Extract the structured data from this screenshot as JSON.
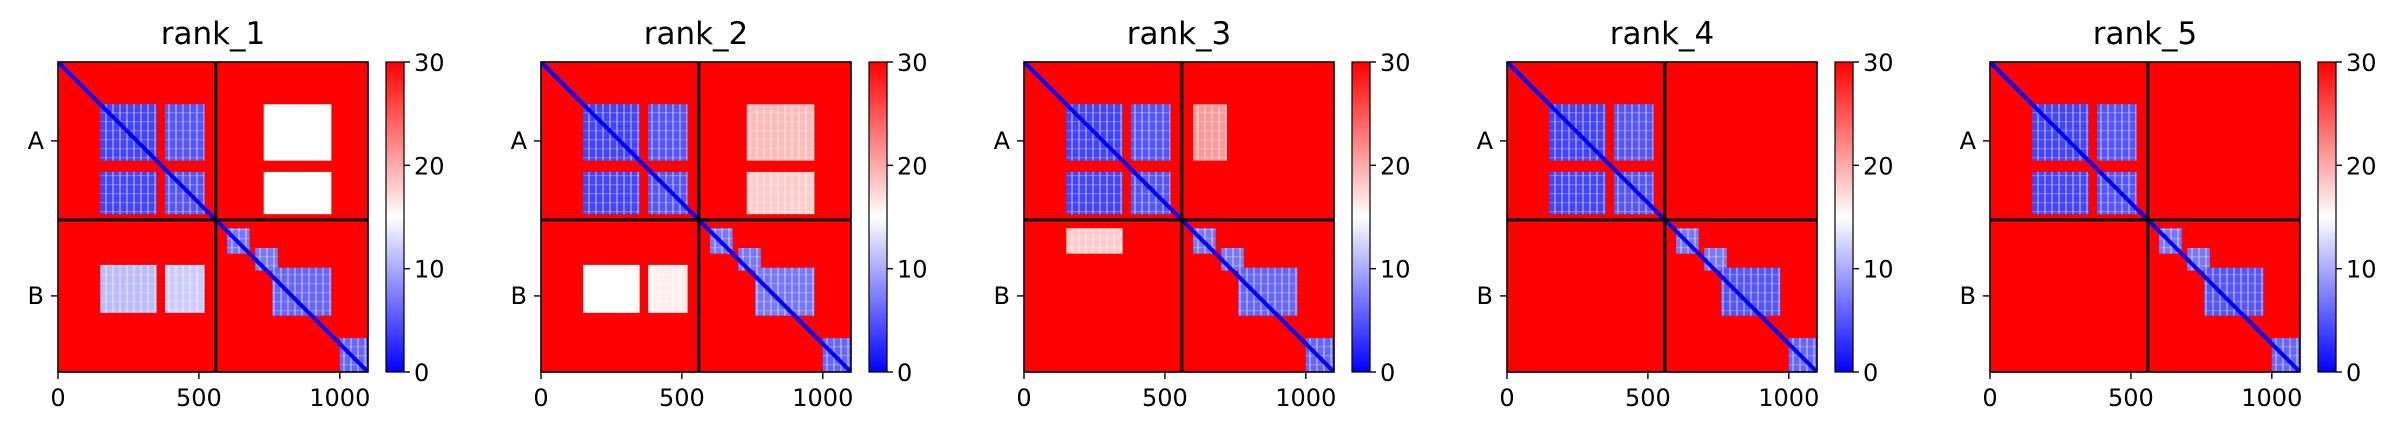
{
  "chart_data": {
    "type": "heatmap",
    "panels": [
      {
        "title": "rank_1",
        "x_ticks": [
          0,
          500,
          1000
        ],
        "y_tick_labels": [
          "A",
          "B"
        ],
        "xlim": [
          0,
          1100
        ],
        "ylim": [
          1100,
          0
        ],
        "chain_boundary": 560,
        "colorbar": {
          "min": 0,
          "max": 30,
          "ticks": [
            0,
            10,
            20,
            30
          ]
        },
        "low_error_blocks": [
          {
            "x": [
              150,
              350
            ],
            "y": [
              150,
              350
            ],
            "level": 4
          },
          {
            "x": [
              380,
              520
            ],
            "y": [
              150,
              350
            ],
            "level": 5
          },
          {
            "x": [
              150,
              350
            ],
            "y": [
              390,
              540
            ],
            "level": 4
          },
          {
            "x": [
              380,
              520
            ],
            "y": [
              390,
              540
            ],
            "level": 5
          },
          {
            "x": [
              730,
              970
            ],
            "y": [
              150,
              350
            ],
            "level": 15
          },
          {
            "x": [
              730,
              970
            ],
            "y": [
              390,
              540
            ],
            "level": 15
          },
          {
            "x": [
              150,
              350
            ],
            "y": [
              720,
              890
            ],
            "level": 11
          },
          {
            "x": [
              380,
              520
            ],
            "y": [
              720,
              890
            ],
            "level": 12
          },
          {
            "x": [
              600,
              680
            ],
            "y": [
              590,
              680
            ],
            "level": 7
          },
          {
            "x": [
              700,
              780
            ],
            "y": [
              660,
              740
            ],
            "level": 7
          },
          {
            "x": [
              760,
              970
            ],
            "y": [
              730,
              900
            ],
            "level": 6
          },
          {
            "x": [
              1000,
              1100
            ],
            "y": [
              980,
              1100
            ],
            "level": 6
          }
        ]
      },
      {
        "title": "rank_2",
        "x_ticks": [
          0,
          500,
          1000
        ],
        "y_tick_labels": [
          "A",
          "B"
        ],
        "xlim": [
          0,
          1100
        ],
        "ylim": [
          1100,
          0
        ],
        "chain_boundary": 560,
        "colorbar": {
          "min": 0,
          "max": 30,
          "ticks": [
            0,
            10,
            20,
            30
          ]
        },
        "low_error_blocks": [
          {
            "x": [
              150,
              350
            ],
            "y": [
              150,
              350
            ],
            "level": 4
          },
          {
            "x": [
              380,
              520
            ],
            "y": [
              150,
              350
            ],
            "level": 5
          },
          {
            "x": [
              150,
              350
            ],
            "y": [
              390,
              540
            ],
            "level": 4
          },
          {
            "x": [
              380,
              520
            ],
            "y": [
              390,
              540
            ],
            "level": 5
          },
          {
            "x": [
              730,
              970
            ],
            "y": [
              150,
              350
            ],
            "level": 19
          },
          {
            "x": [
              730,
              970
            ],
            "y": [
              390,
              540
            ],
            "level": 18
          },
          {
            "x": [
              150,
              350
            ],
            "y": [
              720,
              890
            ],
            "level": 15
          },
          {
            "x": [
              380,
              520
            ],
            "y": [
              720,
              890
            ],
            "level": 16
          },
          {
            "x": [
              600,
              680
            ],
            "y": [
              590,
              680
            ],
            "level": 7
          },
          {
            "x": [
              700,
              780
            ],
            "y": [
              660,
              740
            ],
            "level": 7
          },
          {
            "x": [
              760,
              970
            ],
            "y": [
              730,
              900
            ],
            "level": 7
          },
          {
            "x": [
              1000,
              1100
            ],
            "y": [
              980,
              1100
            ],
            "level": 6
          }
        ]
      },
      {
        "title": "rank_3",
        "x_ticks": [
          0,
          500,
          1000
        ],
        "y_tick_labels": [
          "A",
          "B"
        ],
        "xlim": [
          0,
          1100
        ],
        "ylim": [
          1100,
          0
        ],
        "chain_boundary": 560,
        "colorbar": {
          "min": 0,
          "max": 30,
          "ticks": [
            0,
            10,
            20,
            30
          ]
        },
        "low_error_blocks": [
          {
            "x": [
              150,
              350
            ],
            "y": [
              150,
              350
            ],
            "level": 4
          },
          {
            "x": [
              380,
              520
            ],
            "y": [
              150,
              350
            ],
            "level": 5
          },
          {
            "x": [
              150,
              350
            ],
            "y": [
              390,
              540
            ],
            "level": 4
          },
          {
            "x": [
              380,
              520
            ],
            "y": [
              390,
              540
            ],
            "level": 5
          },
          {
            "x": [
              600,
              720
            ],
            "y": [
              150,
              350
            ],
            "level": 21
          },
          {
            "x": [
              150,
              350
            ],
            "y": [
              590,
              680
            ],
            "level": 18
          },
          {
            "x": [
              600,
              680
            ],
            "y": [
              590,
              680
            ],
            "level": 7
          },
          {
            "x": [
              700,
              780
            ],
            "y": [
              660,
              740
            ],
            "level": 7
          },
          {
            "x": [
              760,
              970
            ],
            "y": [
              730,
              900
            ],
            "level": 6
          },
          {
            "x": [
              1000,
              1100
            ],
            "y": [
              980,
              1100
            ],
            "level": 6
          }
        ]
      },
      {
        "title": "rank_4",
        "x_ticks": [
          0,
          500,
          1000
        ],
        "y_tick_labels": [
          "A",
          "B"
        ],
        "xlim": [
          0,
          1100
        ],
        "ylim": [
          1100,
          0
        ],
        "chain_boundary": 560,
        "colorbar": {
          "min": 0,
          "max": 30,
          "ticks": [
            0,
            10,
            20,
            30
          ]
        },
        "low_error_blocks": [
          {
            "x": [
              150,
              350
            ],
            "y": [
              150,
              350
            ],
            "level": 4
          },
          {
            "x": [
              380,
              520
            ],
            "y": [
              150,
              350
            ],
            "level": 5
          },
          {
            "x": [
              150,
              350
            ],
            "y": [
              390,
              540
            ],
            "level": 4
          },
          {
            "x": [
              380,
              520
            ],
            "y": [
              390,
              540
            ],
            "level": 5
          },
          {
            "x": [
              600,
              680
            ],
            "y": [
              590,
              680
            ],
            "level": 7
          },
          {
            "x": [
              700,
              780
            ],
            "y": [
              660,
              740
            ],
            "level": 7
          },
          {
            "x": [
              760,
              970
            ],
            "y": [
              730,
              900
            ],
            "level": 5
          },
          {
            "x": [
              1000,
              1100
            ],
            "y": [
              980,
              1100
            ],
            "level": 6
          }
        ]
      },
      {
        "title": "rank_5",
        "x_ticks": [
          0,
          500,
          1000
        ],
        "y_tick_labels": [
          "A",
          "B"
        ],
        "xlim": [
          0,
          1100
        ],
        "ylim": [
          1100,
          0
        ],
        "chain_boundary": 560,
        "colorbar": {
          "min": 0,
          "max": 30,
          "ticks": [
            0,
            10,
            20,
            30
          ]
        },
        "low_error_blocks": [
          {
            "x": [
              150,
              350
            ],
            "y": [
              150,
              350
            ],
            "level": 4
          },
          {
            "x": [
              380,
              520
            ],
            "y": [
              150,
              350
            ],
            "level": 5
          },
          {
            "x": [
              150,
              350
            ],
            "y": [
              390,
              540
            ],
            "level": 4
          },
          {
            "x": [
              380,
              520
            ],
            "y": [
              390,
              540
            ],
            "level": 5
          },
          {
            "x": [
              600,
              680
            ],
            "y": [
              590,
              680
            ],
            "level": 7
          },
          {
            "x": [
              700,
              780
            ],
            "y": [
              660,
              740
            ],
            "level": 7
          },
          {
            "x": [
              760,
              970
            ],
            "y": [
              730,
              900
            ],
            "level": 5
          },
          {
            "x": [
              1000,
              1100
            ],
            "y": [
              980,
              1100
            ],
            "level": 6
          }
        ]
      }
    ],
    "colors": {
      "low": "#0000ff",
      "mid": "#ffffff",
      "high": "#ff0000",
      "boundary_line": "#000000"
    }
  }
}
